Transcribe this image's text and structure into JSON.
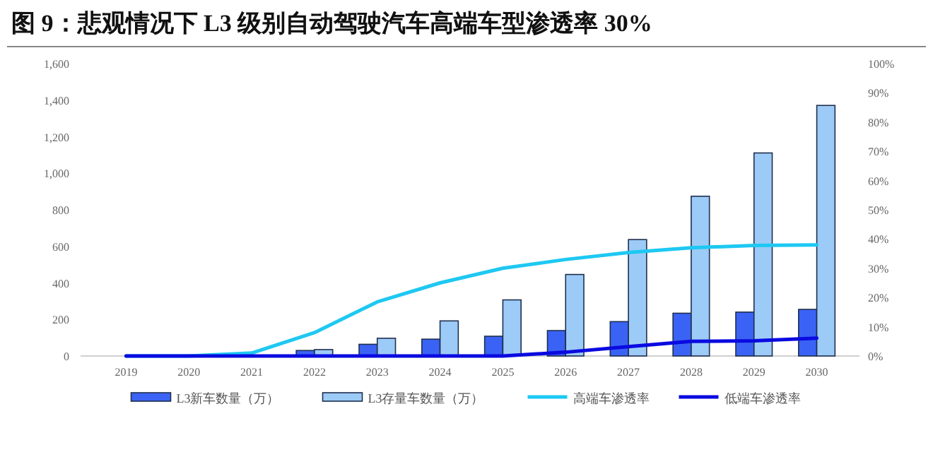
{
  "chart_data": {
    "type": "bar",
    "title": "图 9：悲观情况下 L3 级别自动驾驶汽车高端车型渗透率 30%",
    "categories": [
      "2019",
      "2020",
      "2021",
      "2022",
      "2023",
      "2024",
      "2025",
      "2026",
      "2027",
      "2028",
      "2029",
      "2030"
    ],
    "series": [
      {
        "name": "L3新车数量（万）",
        "color": "#3a63f5",
        "values": [
          0,
          0,
          0,
          30,
          64,
          92,
          108,
          139,
          188,
          234,
          240,
          255
        ]
      },
      {
        "name": "L3存量车数量（万）",
        "color": "#9dcbf7",
        "values": [
          0,
          0,
          0,
          35,
          97,
          192,
          307,
          446,
          637,
          874,
          1111,
          1371
        ]
      },
      {
        "name": "高端车渗透率",
        "type": "line",
        "axis": "y2",
        "color": "#1ec8f2",
        "values": [
          0,
          0,
          1,
          8,
          18.5,
          25,
          30,
          33,
          35.4,
          37,
          37.8,
          38
        ]
      },
      {
        "name": "低端车渗透率",
        "type": "line",
        "axis": "y2",
        "color": "#0a0ae0",
        "values": [
          0,
          0,
          0,
          0,
          0,
          0,
          0,
          1.3,
          3.2,
          5,
          5.2,
          6.1
        ]
      }
    ],
    "ylim": [
      0,
      1600
    ],
    "yticks": [
      0,
      200,
      400,
      600,
      800,
      {
        "value": 1000,
        "label": "1,000"
      },
      {
        "value": 1200,
        "label": "1,200"
      },
      {
        "value": 1400,
        "label": "1,400"
      },
      {
        "value": 1600,
        "label": "1,600"
      }
    ],
    "y2lim": [
      0,
      100
    ],
    "y2ticks": [
      {
        "value": 0,
        "label": "0%"
      },
      {
        "value": 10,
        "label": "10%"
      },
      {
        "value": 20,
        "label": "20%"
      },
      {
        "value": 30,
        "label": "30%"
      },
      {
        "value": 40,
        "label": "40%"
      },
      {
        "value": 50,
        "label": "50%"
      },
      {
        "value": 60,
        "label": "60%"
      },
      {
        "value": 70,
        "label": "70%"
      },
      {
        "value": 80,
        "label": "80%"
      },
      {
        "value": 90,
        "label": "90%"
      },
      {
        "value": 100,
        "label": "100%"
      }
    ],
    "legend": "bottom",
    "grid": false,
    "marker": "none",
    "line_style": "solid"
  }
}
